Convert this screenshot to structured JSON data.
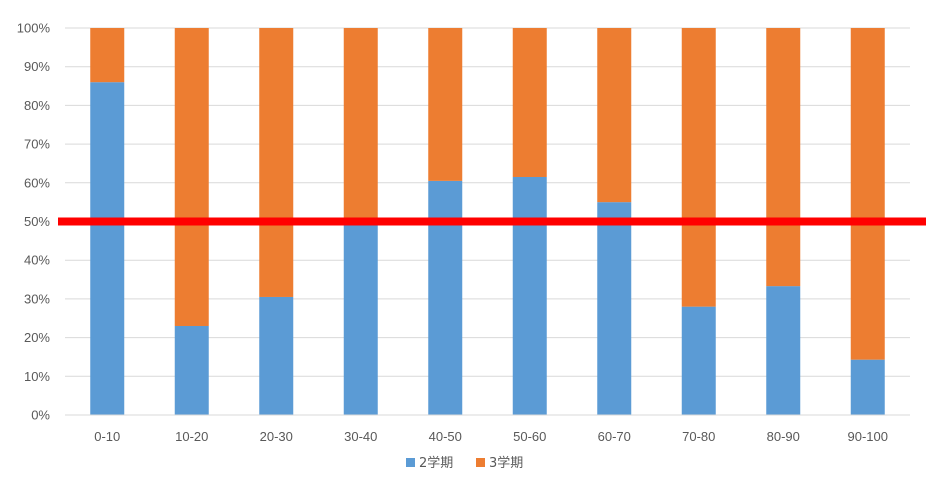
{
  "chart_data": {
    "type": "bar",
    "stacked": true,
    "percent_stacked": true,
    "categories": [
      "0-10",
      "10-20",
      "20-30",
      "30-40",
      "40-50",
      "50-60",
      "60-70",
      "70-80",
      "80-90",
      "90-100"
    ],
    "series": [
      {
        "name": "2学期",
        "color": "#5B9BD5",
        "values": [
          86,
          23,
          30.5,
          50,
          60.5,
          61.5,
          55,
          28,
          33.3,
          14.3
        ]
      },
      {
        "name": "3学期",
        "color": "#ED7D31",
        "values": [
          14,
          77,
          69.5,
          50,
          39.5,
          38.5,
          45,
          72,
          66.7,
          85.7
        ]
      }
    ],
    "y_ticks": [
      "0%",
      "10%",
      "20%",
      "30%",
      "40%",
      "50%",
      "60%",
      "70%",
      "80%",
      "90%",
      "100%"
    ],
    "ylim": [
      0,
      100
    ],
    "grid": true,
    "legend_position": "bottom",
    "reference_line": {
      "value": 50,
      "color": "#FF0000"
    }
  }
}
